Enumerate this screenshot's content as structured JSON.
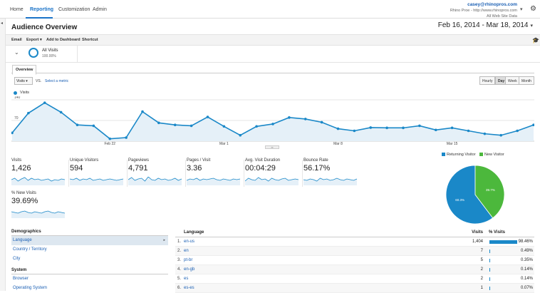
{
  "nav": {
    "tabs": [
      "Home",
      "Reporting",
      "Customization",
      "Admin"
    ],
    "active": "Reporting"
  },
  "account": {
    "email": "casey@rhinopros.com",
    "property": "Rhino Proe - http://www.rhinopros.com",
    "view": "All Web Site Data"
  },
  "page": {
    "title": "Audience Overview",
    "date_range": "Feb 16, 2014 - Mar 18, 2014"
  },
  "actions": [
    "Email",
    "Export",
    "Add to Dashboard",
    "Shortcut"
  ],
  "segment": {
    "name": "All Visits",
    "pct": "100.00%"
  },
  "tabs": {
    "overview": "Overview"
  },
  "metric_selector": {
    "value": "Visits",
    "vs": "VS.",
    "select_metric": "Select a metric"
  },
  "granularity": [
    "Hourly",
    "Day",
    "Week",
    "Month"
  ],
  "granularity_active": "Day",
  "chart_data": {
    "type": "area",
    "series": [
      {
        "name": "Visits",
        "values": [
          28,
          95,
          130,
          98,
          55,
          52,
          8,
          12,
          100,
          62,
          55,
          52,
          82,
          50,
          20,
          50,
          58,
          80,
          75,
          64,
          42,
          35,
          46,
          45,
          45,
          52,
          38,
          45,
          35,
          25,
          20,
          35,
          55
        ]
      }
    ],
    "ylim": [
      0,
      140
    ],
    "yticks": [
      "140",
      "70"
    ],
    "xticks": [
      "Feb 22",
      "Mar 1",
      "Mar 8",
      "Mar 15"
    ],
    "color": "#1a88c8"
  },
  "scorecards": [
    {
      "label": "Visits",
      "value": "1,426"
    },
    {
      "label": "Unique Visitors",
      "value": "594"
    },
    {
      "label": "Pageviews",
      "value": "4,791"
    },
    {
      "label": "Pages / Visit",
      "value": "3.36"
    },
    {
      "label": "Avg. Visit Duration",
      "value": "00:04:29"
    },
    {
      "label": "Bounce Rate",
      "value": "56.17%"
    },
    {
      "label": "% New Visits",
      "value": "39.69%"
    }
  ],
  "pie": {
    "legend": [
      {
        "label": "Returning Visitor",
        "color": "#1a88c8"
      },
      {
        "label": "New Visitor",
        "color": "#4cb83c"
      }
    ],
    "slices": [
      {
        "label": "Returning Visitor",
        "value": 60.3,
        "text": "60.3%"
      },
      {
        "label": "New Visitor",
        "value": 39.7,
        "text": "39.7%"
      }
    ]
  },
  "demographics": {
    "header": "Demographics",
    "items": [
      "Language",
      "Country / Territory",
      "City"
    ],
    "system_header": "System",
    "system_items": [
      "Browser",
      "Operating System"
    ]
  },
  "language_table": {
    "headers": {
      "language": "Language",
      "visits": "Visits",
      "pct": "% Visits"
    },
    "rows": [
      {
        "num": "1.",
        "lang": "en-us",
        "visits": "1,404",
        "pct": "98.46%",
        "frac": 0.9846
      },
      {
        "num": "2.",
        "lang": "en",
        "visits": "7",
        "pct": "0.49%",
        "frac": 0.0049
      },
      {
        "num": "3.",
        "lang": "pt-br",
        "visits": "5",
        "pct": "0.35%",
        "frac": 0.0035
      },
      {
        "num": "4.",
        "lang": "en-gb",
        "visits": "2",
        "pct": "0.14%",
        "frac": 0.0014
      },
      {
        "num": "5.",
        "lang": "es",
        "visits": "2",
        "pct": "0.14%",
        "frac": 0.0014
      },
      {
        "num": "6.",
        "lang": "es-es",
        "visits": "1",
        "pct": "0.07%",
        "frac": 0.0007
      }
    ]
  }
}
